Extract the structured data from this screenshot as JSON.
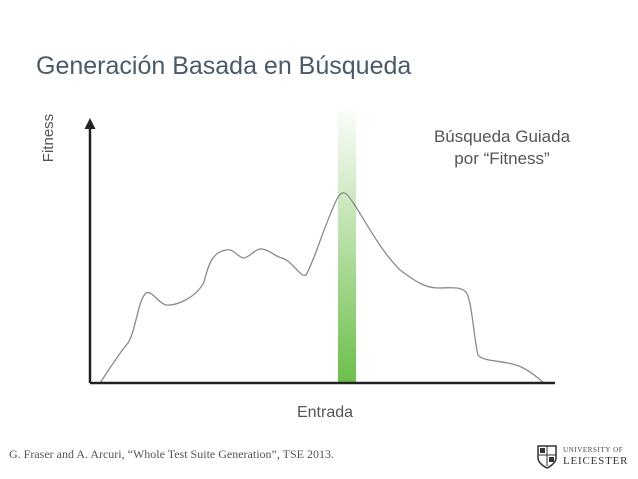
{
  "slide": {
    "title": "Generación Basada en Búsqueda",
    "citation": "G. Fraser and A. Arcuri, “Whole Test Suite Generation”, TSE 2013.",
    "logo": {
      "line1": "UNIVERSITY OF",
      "line2": "LEICESTER"
    }
  },
  "diagram": {
    "y_axis_label": "Fitness",
    "x_axis_label": "Entrada",
    "annotation_line1": "Búsqueda Guiada",
    "annotation_line2": "por “Fitness”",
    "colors": {
      "highlight_band": "#6cbf4a",
      "curve": "#8a8a8a",
      "axis": "#222222",
      "title": "#4a5a6a"
    }
  }
}
